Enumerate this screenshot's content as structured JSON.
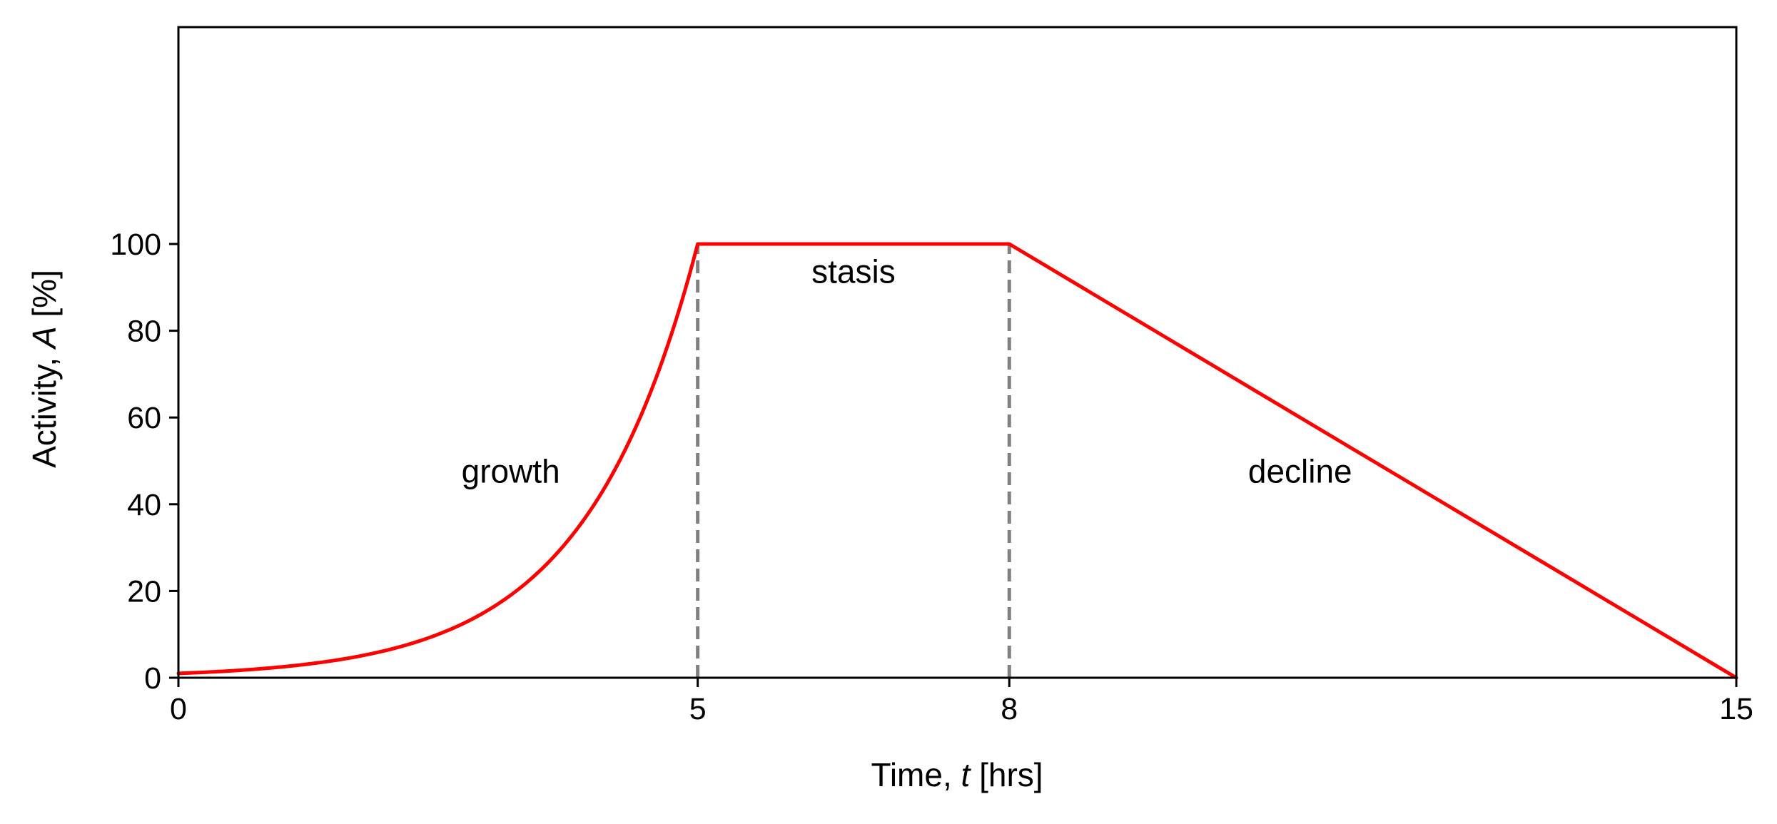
{
  "chart_data": {
    "type": "line",
    "xlabel": {
      "prefix": "Time, ",
      "var": "t",
      "suffix": " [hrs]"
    },
    "ylabel": {
      "prefix": "Activity, ",
      "var": "A",
      "suffix": " [%]"
    },
    "xlim": [
      0,
      15
    ],
    "ylim": [
      0,
      150
    ],
    "xticks": [
      0,
      5,
      8,
      15
    ],
    "yticks": [
      0,
      20,
      40,
      60,
      80,
      100
    ],
    "grid": false,
    "series": [
      {
        "color": "#ff0000",
        "x": [
          0,
          0.5,
          1,
          1.5,
          2,
          2.5,
          3,
          3.5,
          4,
          4.5,
          5,
          8,
          15
        ],
        "y": [
          1.0,
          1.6,
          2.5,
          4.0,
          6.3,
          10.0,
          15.8,
          25.1,
          39.8,
          63.1,
          100,
          100,
          0
        ]
      }
    ],
    "vlines": [
      {
        "x": 5,
        "y0": 0,
        "y1": 100,
        "color": "#808080",
        "style": "dashed"
      },
      {
        "x": 8,
        "y0": 0,
        "y1": 100,
        "color": "#808080",
        "style": "dashed"
      }
    ],
    "annotations": [
      {
        "text": "growth",
        "x": 3.2,
        "y": 45
      },
      {
        "text": "stasis",
        "x": 6.5,
        "y": 91
      },
      {
        "text": "decline",
        "x": 10.8,
        "y": 45
      }
    ]
  }
}
